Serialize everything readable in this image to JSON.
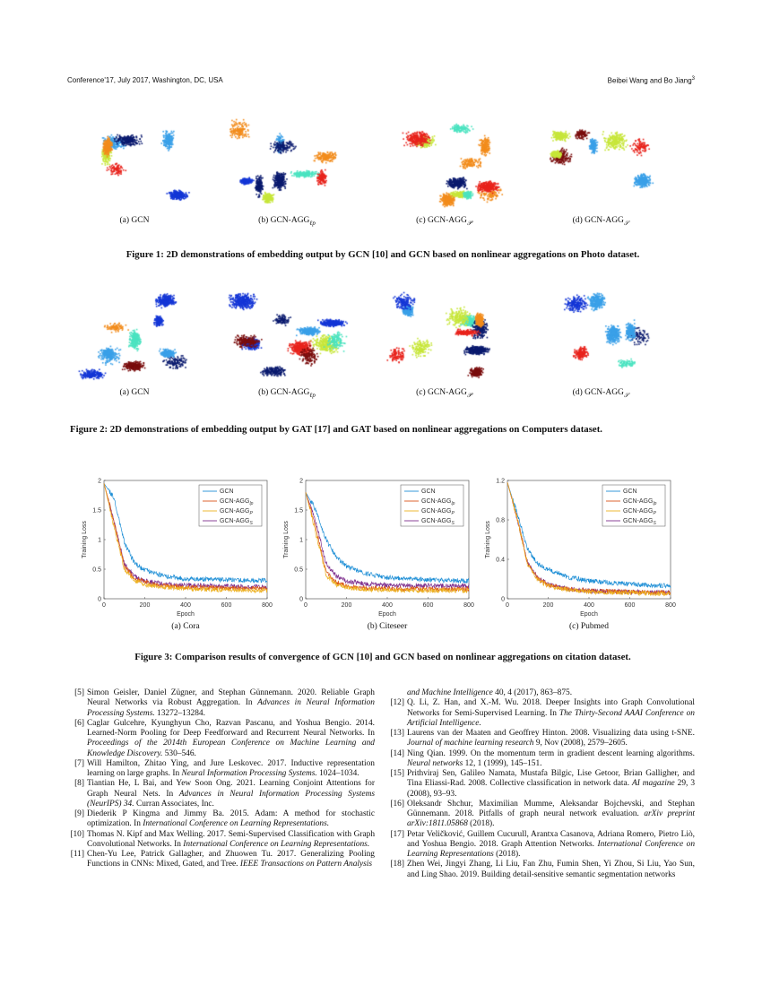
{
  "header": {
    "left": "Conference'17, July 2017, Washington, DC, USA",
    "right": "Beibei Wang and Bo Jiang",
    "right_sup": "3"
  },
  "figure1": {
    "caption": "Figure 1: 2D demonstrations of embedding output by GCN [10] and GCN based on nonlinear aggregations on Photo dataset.",
    "subfigures": [
      {
        "label": "(a) GCN",
        "sub": ""
      },
      {
        "label": "(b) GCN-AGG",
        "sub": "ℓp"
      },
      {
        "label": "(c) GCN-AGG",
        "sub": "𝒫"
      },
      {
        "label": "(d) GCN-AGG",
        "sub": "𝒮"
      }
    ]
  },
  "figure2": {
    "caption": "Figure 2: 2D demonstrations of embedding output by GAT [17] and GAT based on nonlinear aggregations on Computers dataset.",
    "subfigures": [
      {
        "label": "(a) GCN",
        "sub": ""
      },
      {
        "label": "(b) GCN-AGG",
        "sub": "ℓp"
      },
      {
        "label": "(c) GCN-AGG",
        "sub": "𝒫"
      },
      {
        "label": "(d) GCN-AGG",
        "sub": "𝒮"
      }
    ]
  },
  "cluster_colors": [
    "#e8231c",
    "#1436d6",
    "#4be3c0",
    "#0a1a6e",
    "#f28c1c",
    "#c7e63a",
    "#7a0d0d",
    "#3aa0e8"
  ],
  "figure3": {
    "caption": "Figure 3: Comparison results of convergence of GCN [10] and GCN based on nonlinear aggregations on citation dataset."
  },
  "chart_data": [
    {
      "type": "line",
      "subcaption": "(a) Cora",
      "xlabel": "Epoch",
      "ylabel": "Training Loss",
      "xlim": [
        0,
        800
      ],
      "ylim": [
        0,
        2
      ],
      "xticks": [
        0,
        200,
        400,
        600,
        800
      ],
      "yticks": [
        "0",
        "0.5",
        "1",
        "1.5",
        "2"
      ],
      "ytick_values": [
        0,
        0.5,
        1,
        1.5,
        2
      ],
      "legend": "top-right",
      "x": [
        0,
        50,
        100,
        150,
        200,
        300,
        400,
        600,
        800
      ],
      "series": [
        {
          "name": "GCN",
          "sub": "",
          "color": "#1f8fd6",
          "values": [
            1.95,
            1.7,
            0.95,
            0.6,
            0.48,
            0.38,
            0.34,
            0.32,
            0.31
          ]
        },
        {
          "name": "GCN-AGG",
          "sub": "lp",
          "color": "#d9541a",
          "values": [
            1.95,
            1.3,
            0.55,
            0.35,
            0.28,
            0.22,
            0.2,
            0.18,
            0.17
          ]
        },
        {
          "name": "GCN-AGG",
          "sub": "P",
          "color": "#edb120",
          "values": [
            1.95,
            1.2,
            0.5,
            0.3,
            0.24,
            0.19,
            0.17,
            0.15,
            0.14
          ]
        },
        {
          "name": "GCN-AGG",
          "sub": "S",
          "color": "#7e2f8e",
          "values": [
            1.95,
            1.3,
            0.58,
            0.38,
            0.3,
            0.25,
            0.23,
            0.21,
            0.2
          ]
        }
      ]
    },
    {
      "type": "line",
      "subcaption": "(b) Citeseer",
      "xlabel": "Epoch",
      "ylabel": "Training Loss",
      "xlim": [
        0,
        800
      ],
      "ylim": [
        0,
        2
      ],
      "xticks": [
        0,
        200,
        400,
        600,
        800
      ],
      "yticks": [
        "0",
        "0.5",
        "1",
        "1.5",
        "2"
      ],
      "ytick_values": [
        0,
        0.5,
        1,
        1.5,
        2
      ],
      "legend": "top-right",
      "x": [
        0,
        50,
        100,
        150,
        200,
        300,
        400,
        600,
        800
      ],
      "series": [
        {
          "name": "GCN",
          "sub": "",
          "color": "#1f8fd6",
          "values": [
            1.8,
            1.5,
            1.0,
            0.7,
            0.55,
            0.42,
            0.36,
            0.32,
            0.3
          ]
        },
        {
          "name": "GCN-AGG",
          "sub": "lp",
          "color": "#d9541a",
          "values": [
            1.8,
            1.2,
            0.45,
            0.28,
            0.22,
            0.18,
            0.17,
            0.16,
            0.16
          ]
        },
        {
          "name": "GCN-AGG",
          "sub": "P",
          "color": "#edb120",
          "values": [
            1.8,
            1.1,
            0.4,
            0.24,
            0.19,
            0.16,
            0.15,
            0.14,
            0.14
          ]
        },
        {
          "name": "GCN-AGG",
          "sub": "S",
          "color": "#7e2f8e",
          "values": [
            1.8,
            1.3,
            0.6,
            0.38,
            0.3,
            0.25,
            0.23,
            0.22,
            0.22
          ]
        }
      ]
    },
    {
      "type": "line",
      "subcaption": "(c) Pubmed",
      "xlabel": "Epoch",
      "ylabel": "Training Loss",
      "xlim": [
        0,
        800
      ],
      "ylim": [
        0,
        1.2
      ],
      "xticks": [
        0,
        200,
        400,
        600,
        800
      ],
      "yticks": [
        "0",
        "0.4",
        "0.8",
        "1.2"
      ],
      "ytick_values": [
        0,
        0.4,
        0.8,
        1.2
      ],
      "legend": "top-right",
      "x": [
        0,
        50,
        100,
        150,
        200,
        300,
        400,
        600,
        800
      ],
      "series": [
        {
          "name": "GCN",
          "sub": "",
          "color": "#1f8fd6",
          "values": [
            1.18,
            0.85,
            0.5,
            0.35,
            0.3,
            0.22,
            0.18,
            0.15,
            0.13
          ]
        },
        {
          "name": "GCN-AGG",
          "sub": "lp",
          "color": "#d9541a",
          "values": [
            1.18,
            0.8,
            0.35,
            0.2,
            0.14,
            0.1,
            0.08,
            0.07,
            0.06
          ]
        },
        {
          "name": "GCN-AGG",
          "sub": "P",
          "color": "#edb120",
          "values": [
            1.18,
            0.8,
            0.34,
            0.19,
            0.13,
            0.09,
            0.07,
            0.06,
            0.05
          ]
        },
        {
          "name": "GCN-AGG",
          "sub": "S",
          "color": "#7e2f8e",
          "values": [
            1.18,
            0.8,
            0.36,
            0.21,
            0.15,
            0.1,
            0.08,
            0.07,
            0.06
          ]
        }
      ]
    }
  ],
  "references": {
    "left": [
      {
        "num": "[5]",
        "segs": [
          {
            "t": "Simon Geisler, Daniel Zügner, and Stephan Günnemann. 2020. Reliable Graph Neural Networks via Robust Aggregation. In "
          },
          {
            "t": "Advances in Neural Information Processing Systems.",
            "i": true
          },
          {
            "t": " 13272–13284."
          }
        ]
      },
      {
        "num": "[6]",
        "segs": [
          {
            "t": "Caglar Gulcehre, Kyunghyun Cho, Razvan Pascanu, and Yoshua Bengio. 2014. Learned-Norm Pooling for Deep Feedforward and Recurrent Neural Networks. In "
          },
          {
            "t": "Proceedings of the 2014th European Conference on Machine Learning and Knowledge Discovery.",
            "i": true
          },
          {
            "t": " 530–546."
          }
        ]
      },
      {
        "num": "[7]",
        "segs": [
          {
            "t": "Will Hamilton, Zhitao Ying, and Jure Leskovec. 2017. Inductive representation learning on large graphs. In "
          },
          {
            "t": "Neural Information Processing Systems.",
            "i": true
          },
          {
            "t": " 1024–1034."
          }
        ]
      },
      {
        "num": "[8]",
        "segs": [
          {
            "t": "Tiantian He, L Bai, and Yew Soon Ong. 2021. Learning Conjoint Attentions for Graph Neural Nets. In "
          },
          {
            "t": "Advances in Neural Information Processing Systems (NeurIPS) 34.",
            "i": true
          },
          {
            "t": " Curran Associates, Inc."
          }
        ]
      },
      {
        "num": "[9]",
        "segs": [
          {
            "t": "Diederik P Kingma and Jimmy Ba. 2015. Adam: A method for stochastic optimization. In "
          },
          {
            "t": "International Conference on Learning Representations.",
            "i": true
          }
        ]
      },
      {
        "num": "[10]",
        "segs": [
          {
            "t": "Thomas N. Kipf and Max Welling. 2017. Semi-Supervised Classification with Graph Convolutional Networks. In "
          },
          {
            "t": "International Conference on Learning Representations.",
            "i": true
          }
        ]
      },
      {
        "num": "[11]",
        "segs": [
          {
            "t": "Chen-Yu Lee, Patrick Gallagher, and Zhuowen Tu. 2017. Generalizing Pooling Functions in CNNs: Mixed, Gated, and Tree. "
          },
          {
            "t": "IEEE Transactions on Pattern Analysis",
            "i": true
          }
        ]
      }
    ],
    "right": [
      {
        "num": "",
        "segs": [
          {
            "t": "and Machine Intelligence",
            "i": true
          },
          {
            "t": " 40, 4 (2017), 863–875."
          }
        ]
      },
      {
        "num": "[12]",
        "segs": [
          {
            "t": "Q. Li, Z. Han, and X.-M. Wu. 2018. Deeper Insights into Graph Convolutional Networks for Semi-Supervised Learning. In "
          },
          {
            "t": "The Thirty-Second AAAI Conference on Artificial Intelligence.",
            "i": true
          }
        ]
      },
      {
        "num": "[13]",
        "segs": [
          {
            "t": "Laurens van der Maaten and Geoffrey Hinton. 2008. Visualizing data using t-SNE. "
          },
          {
            "t": "Journal of machine learning research",
            "i": true
          },
          {
            "t": " 9, Nov (2008), 2579–2605."
          }
        ]
      },
      {
        "num": "[14]",
        "segs": [
          {
            "t": "Ning Qian. 1999. On the momentum term in gradient descent learning algorithms. "
          },
          {
            "t": "Neural networks",
            "i": true
          },
          {
            "t": " 12, 1 (1999), 145–151."
          }
        ]
      },
      {
        "num": "[15]",
        "segs": [
          {
            "t": "Prithviraj Sen, Galileo Namata, Mustafa Bilgic, Lise Getoor, Brian Galligher, and Tina Eliassi-Rad. 2008. Collective classification in network data. "
          },
          {
            "t": "AI magazine",
            "i": true
          },
          {
            "t": " 29, 3 (2008), 93–93."
          }
        ]
      },
      {
        "num": "[16]",
        "segs": [
          {
            "t": "Oleksandr Shchur, Maximilian Mumme, Aleksandar Bojchevski, and Stephan Günnemann. 2018. Pitfalls of graph neural network evaluation. "
          },
          {
            "t": "arXiv preprint arXiv:1811.05868",
            "i": true
          },
          {
            "t": " (2018)."
          }
        ]
      },
      {
        "num": "[17]",
        "segs": [
          {
            "t": "Petar Veličković, Guillem Cucurull, Arantxa Casanova, Adriana Romero, Pietro Liò, and Yoshua Bengio. 2018. Graph Attention Networks. "
          },
          {
            "t": "International Conference on Learning Representations",
            "i": true
          },
          {
            "t": " (2018)."
          }
        ]
      },
      {
        "num": "[18]",
        "segs": [
          {
            "t": "Zhen Wei, Jingyi Zhang, Li Liu, Fan Zhu, Fumin Shen, Yi Zhou, Si Liu, Yao Sun, and Ling Shao. 2019. Building detail-sensitive semantic segmentation networks"
          }
        ]
      }
    ]
  }
}
